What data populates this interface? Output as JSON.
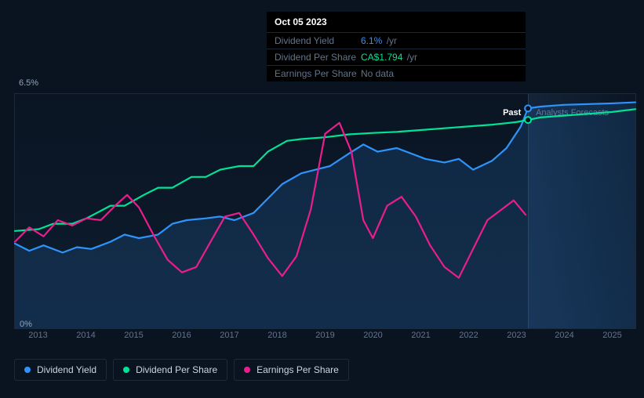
{
  "tooltip": {
    "date": "Oct 05 2023",
    "rows": [
      {
        "label": "Dividend Yield",
        "value": "6.1%",
        "unit": "/yr",
        "color": "#2e93fa"
      },
      {
        "label": "Dividend Per Share",
        "value": "CA$1.794",
        "unit": "/yr",
        "color": "#00e396"
      },
      {
        "label": "Earnings Per Share",
        "value": "No data",
        "unit": "",
        "color": "#64748b"
      }
    ]
  },
  "chart": {
    "y_max_label": "6.5%",
    "y_min_label": "0%",
    "past_label": "Past",
    "forecast_label": "Analysts Forecasts",
    "x_labels": [
      "2013",
      "2014",
      "2015",
      "2016",
      "2017",
      "2018",
      "2019",
      "2020",
      "2021",
      "2022",
      "2023",
      "2024",
      "2025"
    ],
    "x_domain": [
      0,
      13
    ],
    "y_domain": [
      0,
      6.5
    ],
    "current_x": 10.75,
    "background": "#0a1420",
    "grid_color": "#1e2a3a",
    "series": [
      {
        "name": "Dividend Yield",
        "color": "#2e93fa",
        "fill": true,
        "data": [
          [
            0.0,
            2.35
          ],
          [
            0.3,
            2.15
          ],
          [
            0.6,
            2.3
          ],
          [
            1.0,
            2.1
          ],
          [
            1.3,
            2.25
          ],
          [
            1.6,
            2.2
          ],
          [
            2.0,
            2.4
          ],
          [
            2.3,
            2.6
          ],
          [
            2.6,
            2.5
          ],
          [
            3.0,
            2.6
          ],
          [
            3.3,
            2.9
          ],
          [
            3.6,
            3.0
          ],
          [
            4.0,
            3.05
          ],
          [
            4.3,
            3.1
          ],
          [
            4.6,
            3.0
          ],
          [
            5.0,
            3.2
          ],
          [
            5.3,
            3.6
          ],
          [
            5.6,
            4.0
          ],
          [
            6.0,
            4.3
          ],
          [
            6.3,
            4.4
          ],
          [
            6.6,
            4.5
          ],
          [
            7.0,
            4.85
          ],
          [
            7.3,
            5.1
          ],
          [
            7.6,
            4.9
          ],
          [
            8.0,
            5.0
          ],
          [
            8.3,
            4.85
          ],
          [
            8.6,
            4.7
          ],
          [
            9.0,
            4.6
          ],
          [
            9.3,
            4.7
          ],
          [
            9.6,
            4.4
          ],
          [
            10.0,
            4.65
          ],
          [
            10.3,
            5.0
          ],
          [
            10.6,
            5.6
          ],
          [
            10.75,
            6.1
          ],
          [
            11.0,
            6.15
          ],
          [
            11.5,
            6.2
          ],
          [
            12.0,
            6.22
          ],
          [
            12.5,
            6.24
          ],
          [
            13.0,
            6.27
          ]
        ]
      },
      {
        "name": "Dividend Per Share",
        "color": "#00e396",
        "fill": false,
        "data": [
          [
            0.0,
            2.7
          ],
          [
            0.5,
            2.75
          ],
          [
            0.8,
            2.9
          ],
          [
            1.2,
            2.9
          ],
          [
            1.5,
            3.05
          ],
          [
            2.0,
            3.4
          ],
          [
            2.3,
            3.4
          ],
          [
            2.7,
            3.7
          ],
          [
            3.0,
            3.9
          ],
          [
            3.3,
            3.9
          ],
          [
            3.7,
            4.2
          ],
          [
            4.0,
            4.2
          ],
          [
            4.3,
            4.4
          ],
          [
            4.7,
            4.5
          ],
          [
            5.0,
            4.5
          ],
          [
            5.3,
            4.9
          ],
          [
            5.7,
            5.2
          ],
          [
            6.0,
            5.25
          ],
          [
            6.5,
            5.3
          ],
          [
            7.0,
            5.38
          ],
          [
            7.5,
            5.42
          ],
          [
            8.0,
            5.45
          ],
          [
            8.5,
            5.5
          ],
          [
            9.0,
            5.55
          ],
          [
            9.5,
            5.6
          ],
          [
            10.0,
            5.65
          ],
          [
            10.5,
            5.72
          ],
          [
            10.75,
            5.78
          ],
          [
            11.0,
            5.85
          ],
          [
            11.5,
            5.9
          ],
          [
            12.0,
            5.95
          ],
          [
            12.5,
            6.0
          ],
          [
            13.0,
            6.08
          ]
        ]
      },
      {
        "name": "Earnings Per Share",
        "color": "#e91e8c",
        "fill": false,
        "data": [
          [
            0.0,
            2.4
          ],
          [
            0.3,
            2.8
          ],
          [
            0.6,
            2.55
          ],
          [
            0.9,
            3.0
          ],
          [
            1.2,
            2.85
          ],
          [
            1.5,
            3.05
          ],
          [
            1.8,
            3.0
          ],
          [
            2.1,
            3.4
          ],
          [
            2.35,
            3.7
          ],
          [
            2.6,
            3.35
          ],
          [
            2.9,
            2.6
          ],
          [
            3.2,
            1.9
          ],
          [
            3.5,
            1.55
          ],
          [
            3.8,
            1.7
          ],
          [
            4.1,
            2.4
          ],
          [
            4.4,
            3.1
          ],
          [
            4.7,
            3.2
          ],
          [
            5.0,
            2.6
          ],
          [
            5.3,
            1.95
          ],
          [
            5.6,
            1.45
          ],
          [
            5.9,
            2.0
          ],
          [
            6.2,
            3.3
          ],
          [
            6.5,
            5.4
          ],
          [
            6.8,
            5.7
          ],
          [
            7.05,
            4.9
          ],
          [
            7.3,
            3.0
          ],
          [
            7.5,
            2.5
          ],
          [
            7.8,
            3.4
          ],
          [
            8.1,
            3.65
          ],
          [
            8.4,
            3.1
          ],
          [
            8.7,
            2.3
          ],
          [
            9.0,
            1.7
          ],
          [
            9.3,
            1.4
          ],
          [
            9.6,
            2.2
          ],
          [
            9.9,
            3.0
          ],
          [
            10.2,
            3.3
          ],
          [
            10.45,
            3.55
          ],
          [
            10.7,
            3.15
          ]
        ]
      }
    ],
    "markers": [
      {
        "x": 10.75,
        "y": 6.1,
        "stroke": "#2e93fa"
      },
      {
        "x": 10.75,
        "y": 5.78,
        "stroke": "#00e396"
      }
    ]
  },
  "legend": [
    {
      "label": "Dividend Yield",
      "color": "#2e93fa"
    },
    {
      "label": "Dividend Per Share",
      "color": "#00e396"
    },
    {
      "label": "Earnings Per Share",
      "color": "#e91e8c"
    }
  ]
}
